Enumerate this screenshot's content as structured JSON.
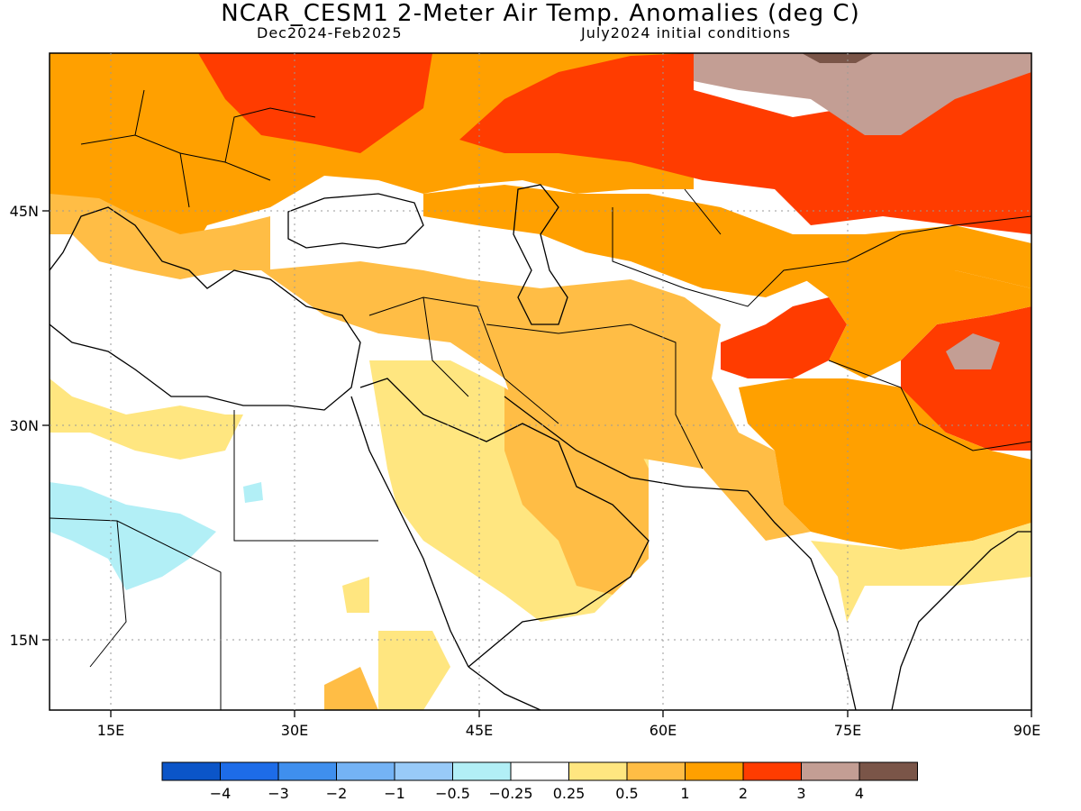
{
  "header": {
    "title": "NCAR_CESM1 2-Meter Air Temp. Anomalies (deg C)",
    "season": "Dec2024-Feb2025",
    "init": "July2024 initial conditions"
  },
  "map": {
    "lon_range": [
      10,
      90
    ],
    "lat_range": [
      10,
      56
    ],
    "lon_ticks": [
      {
        "value": 15,
        "label": "15E"
      },
      {
        "value": 30,
        "label": "30E"
      },
      {
        "value": 45,
        "label": "45E"
      },
      {
        "value": 60,
        "label": "60E"
      },
      {
        "value": 75,
        "label": "75E"
      },
      {
        "value": 90,
        "label": "90E"
      }
    ],
    "lat_ticks": [
      {
        "value": 15,
        "label": "15N"
      },
      {
        "value": 30,
        "label": "30N"
      },
      {
        "value": 45,
        "label": "45N"
      }
    ],
    "gridlines": "dotted",
    "land_outline": "black",
    "sea_fill": "#ffffff"
  },
  "colorbar": {
    "colors": [
      "#0b55c8",
      "#1d6ce8",
      "#3f8fee",
      "#74b3f5",
      "#98caf8",
      "#b2eff6",
      "#ffffff",
      "#ffe680",
      "#ffbd45",
      "#ffa000",
      "#ff3c00",
      "#c39e94",
      "#7a5548"
    ],
    "labels": [
      "-4",
      "-3",
      "-2",
      "-1",
      "-0.5",
      "-0.25",
      "0.25",
      "0.5",
      "1",
      "2",
      "3",
      "4"
    ]
  }
}
